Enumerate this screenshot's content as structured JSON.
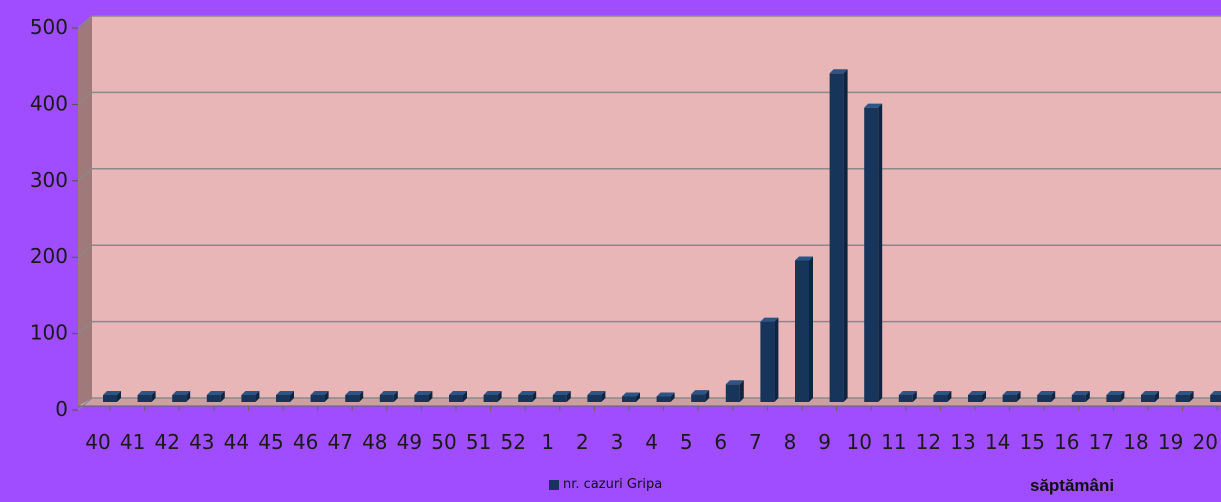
{
  "chart_data": {
    "type": "bar",
    "categories": [
      "40",
      "41",
      "42",
      "43",
      "44",
      "45",
      "46",
      "47",
      "48",
      "49",
      "50",
      "51",
      "52",
      "1",
      "2",
      "3",
      "4",
      "5",
      "6",
      "7",
      "8",
      "9",
      "10",
      "11",
      "12",
      "13",
      "14",
      "15",
      "16",
      "17",
      "18",
      "19",
      "20"
    ],
    "series": [
      {
        "name": "nr. cazuri Gripa",
        "values": [
          0,
          0,
          0,
          0,
          0,
          0,
          0,
          0,
          0,
          0,
          0,
          0,
          0,
          0,
          0,
          2,
          2,
          5,
          18,
          100,
          180,
          425,
          380,
          0,
          0,
          0,
          0,
          0,
          0,
          0,
          0,
          0,
          0
        ]
      }
    ],
    "title": "",
    "xlabel": "săptămâni",
    "ylabel": "",
    "ylim": [
      0,
      500
    ],
    "yticks": [
      0,
      100,
      200,
      300,
      400,
      500
    ],
    "grid": true,
    "legend_position": "bottom",
    "colors": {
      "background": "#a04dff",
      "plot_area": "#e8b6b6",
      "wall_side": "#a07a7a",
      "bar": "#17345a",
      "bar_top": "#2c5484",
      "gridline": "#8a8a8a"
    }
  }
}
